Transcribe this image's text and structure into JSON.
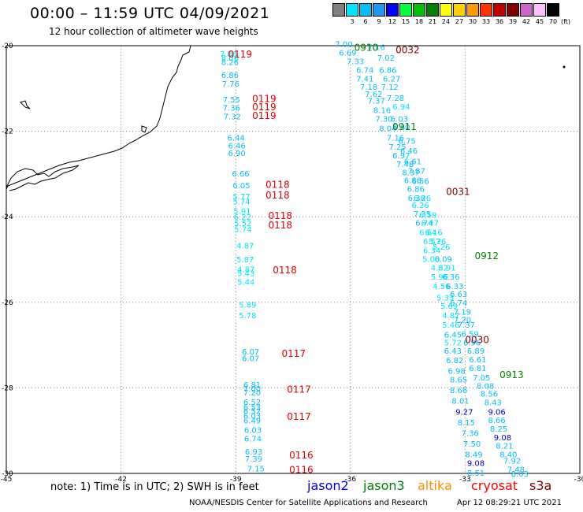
{
  "header": {
    "title": "00:00 – 11:59 UTC 04/09/2021",
    "subtitle": "12 hour collection of altimeter wave heights"
  },
  "legend": {
    "unit": "(ft)",
    "items": [
      {
        "label": "",
        "color": "#808080"
      },
      {
        "label": "3",
        "color": "#00e5ff"
      },
      {
        "label": "6",
        "color": "#00bfff"
      },
      {
        "label": "9",
        "color": "#2196f3"
      },
      {
        "label": "12",
        "color": "#0000ff"
      },
      {
        "label": "15",
        "color": "#00ff40"
      },
      {
        "label": "18",
        "color": "#00c000"
      },
      {
        "label": "21",
        "color": "#008000"
      },
      {
        "label": "24",
        "color": "#ffff00"
      },
      {
        "label": "27",
        "color": "#ffd000"
      },
      {
        "label": "30",
        "color": "#ff9900"
      },
      {
        "label": "33",
        "color": "#ff3300"
      },
      {
        "label": "36",
        "color": "#c00000"
      },
      {
        "label": "39",
        "color": "#800000"
      },
      {
        "label": "42",
        "color": "#cc66cc"
      },
      {
        "label": "45",
        "color": "#ffc0ff"
      },
      {
        "label": "70",
        "color": "#000000"
      }
    ]
  },
  "map": {
    "lon_ticks": [
      "-45",
      "-42",
      "-39",
      "-36",
      "-33",
      "-30"
    ],
    "lat_ticks": [
      "-20",
      "-22",
      "-24",
      "-26",
      "-28",
      "-30"
    ]
  },
  "tracks": {
    "west_values": [
      {
        "lon": -39.42,
        "lat": -20.18,
        "v": "7.86",
        "c": "#00e5ff"
      },
      {
        "lon": -39.38,
        "lat": -20.28,
        "v": "8.06",
        "c": "#00e5ff"
      },
      {
        "lon": -39.38,
        "lat": -20.38,
        "v": "8.26",
        "c": "#00bfff"
      },
      {
        "lon": -39.38,
        "lat": -20.68,
        "v": "6.86",
        "c": "#00bfff"
      },
      {
        "lon": -39.36,
        "lat": -20.88,
        "v": "7.76",
        "c": "#00bfff"
      },
      {
        "lon": -39.34,
        "lat": -21.25,
        "v": "7.55",
        "c": "#00bfff"
      },
      {
        "lon": -39.34,
        "lat": -21.45,
        "v": "7.36",
        "c": "#00bfff"
      },
      {
        "lon": -39.32,
        "lat": -21.65,
        "v": "7.32",
        "c": "#00bfff"
      },
      {
        "lon": -39.22,
        "lat": -22.15,
        "v": "6.44",
        "c": "#00bfff"
      },
      {
        "lon": -39.2,
        "lat": -22.33,
        "v": "6.46",
        "c": "#00bfff"
      },
      {
        "lon": -39.2,
        "lat": -22.5,
        "v": "6.90",
        "c": "#00bfff"
      },
      {
        "lon": -39.1,
        "lat": -22.98,
        "v": "6.66",
        "c": "#00bfff"
      },
      {
        "lon": -39.08,
        "lat": -23.26,
        "v": "6.05",
        "c": "#00bfff"
      },
      {
        "lon": -39.08,
        "lat": -23.52,
        "v": "5.77",
        "c": "#00e5ff"
      },
      {
        "lon": -39.08,
        "lat": -23.64,
        "v": "5.74",
        "c": "#00e5ff"
      },
      {
        "lon": -39.06,
        "lat": -23.86,
        "v": "5.91",
        "c": "#00e5ff"
      },
      {
        "lon": -39.05,
        "lat": -24.0,
        "v": "6.22",
        "c": "#00e5ff"
      },
      {
        "lon": -39.04,
        "lat": -24.14,
        "v": "5.52",
        "c": "#00e5ff"
      },
      {
        "lon": -39.04,
        "lat": -24.28,
        "v": "5.74",
        "c": "#00e5ff"
      },
      {
        "lon": -38.98,
        "lat": -24.67,
        "v": "4.87",
        "c": "#00e5ff"
      },
      {
        "lon": -38.98,
        "lat": -24.99,
        "v": "5.87",
        "c": "#00e5ff"
      },
      {
        "lon": -38.96,
        "lat": -25.22,
        "v": "4.87",
        "c": "#00e5ff"
      },
      {
        "lon": -38.96,
        "lat": -25.31,
        "v": "5.43",
        "c": "#00e5ff"
      },
      {
        "lon": -38.96,
        "lat": -25.52,
        "v": "5.44",
        "c": "#00e5ff"
      },
      {
        "lon": -38.92,
        "lat": -26.05,
        "v": "5.89",
        "c": "#00e5ff"
      },
      {
        "lon": -38.92,
        "lat": -26.3,
        "v": "5.78",
        "c": "#00e5ff"
      },
      {
        "lon": -38.84,
        "lat": -27.15,
        "v": "6.07",
        "c": "#00bfff"
      },
      {
        "lon": -38.84,
        "lat": -27.3,
        "v": "6.07",
        "c": "#00bfff"
      },
      {
        "lon": -38.8,
        "lat": -27.92,
        "v": "6.81",
        "c": "#00bfff"
      },
      {
        "lon": -38.8,
        "lat": -28.01,
        "v": "7.00",
        "c": "#00bfff"
      },
      {
        "lon": -38.8,
        "lat": -28.1,
        "v": "7.20",
        "c": "#00bfff"
      },
      {
        "lon": -38.8,
        "lat": -28.32,
        "v": "6.52",
        "c": "#00bfff"
      },
      {
        "lon": -38.8,
        "lat": -28.44,
        "v": "6.53",
        "c": "#00bfff"
      },
      {
        "lon": -38.8,
        "lat": -28.54,
        "v": "6.52",
        "c": "#00bfff"
      },
      {
        "lon": -38.8,
        "lat": -28.65,
        "v": "6.03",
        "c": "#00bfff"
      },
      {
        "lon": -38.8,
        "lat": -28.76,
        "v": "6.49",
        "c": "#00bfff"
      },
      {
        "lon": -38.78,
        "lat": -28.98,
        "v": "6.03",
        "c": "#00bfff"
      },
      {
        "lon": -38.78,
        "lat": -29.18,
        "v": "6.74",
        "c": "#00bfff"
      },
      {
        "lon": -38.76,
        "lat": -29.48,
        "v": "6.93",
        "c": "#00bfff"
      },
      {
        "lon": -38.76,
        "lat": -29.65,
        "v": "7.39",
        "c": "#00bfff"
      },
      {
        "lon": -38.7,
        "lat": -29.88,
        "v": "7.15",
        "c": "#00bfff"
      }
    ],
    "east_values": [
      {
        "lon": -36.4,
        "lat": -19.95,
        "v": "7.00",
        "c": "#00bfff"
      },
      {
        "lon": -35.55,
        "lat": -20.03,
        "v": "7.16",
        "c": "#00bfff"
      },
      {
        "lon": -36.3,
        "lat": -20.16,
        "v": "6.69",
        "c": "#00bfff"
      },
      {
        "lon": -35.3,
        "lat": -20.28,
        "v": "7.02",
        "c": "#00bfff"
      },
      {
        "lon": -36.1,
        "lat": -20.36,
        "v": "7.33",
        "c": "#00bfff"
      },
      {
        "lon": -35.85,
        "lat": -20.56,
        "v": "6.74",
        "c": "#00bfff"
      },
      {
        "lon": -35.25,
        "lat": -20.56,
        "v": "6.86",
        "c": "#00bfff"
      },
      {
        "lon": -35.85,
        "lat": -20.76,
        "v": "7.41",
        "c": "#00bfff"
      },
      {
        "lon": -35.15,
        "lat": -20.76,
        "v": "6.27",
        "c": "#00bfff"
      },
      {
        "lon": -35.75,
        "lat": -20.96,
        "v": "7.18",
        "c": "#00bfff"
      },
      {
        "lon": -35.2,
        "lat": -20.96,
        "v": "7.12",
        "c": "#00bfff"
      },
      {
        "lon": -35.62,
        "lat": -21.12,
        "v": "7.62",
        "c": "#00bfff"
      },
      {
        "lon": -35.05,
        "lat": -21.22,
        "v": "7.28",
        "c": "#00bfff"
      },
      {
        "lon": -35.55,
        "lat": -21.28,
        "v": "7.37",
        "c": "#00bfff"
      },
      {
        "lon": -34.9,
        "lat": -21.42,
        "v": "6.94",
        "c": "#00e5ff"
      },
      {
        "lon": -35.4,
        "lat": -21.5,
        "v": "8.16",
        "c": "#00bfff"
      },
      {
        "lon": -35.35,
        "lat": -21.7,
        "v": "7.30",
        "c": "#00bfff"
      },
      {
        "lon": -34.95,
        "lat": -21.7,
        "v": "6.03",
        "c": "#00bfff"
      },
      {
        "lon": -35.25,
        "lat": -21.92,
        "v": "8.04",
        "c": "#00bfff"
      },
      {
        "lon": -34.9,
        "lat": -21.9,
        "v": "6.80",
        "c": "#00bfff"
      },
      {
        "lon": -35.05,
        "lat": -22.15,
        "v": "7.16",
        "c": "#00bfff"
      },
      {
        "lon": -34.75,
        "lat": -22.22,
        "v": "6.75",
        "c": "#00bfff"
      },
      {
        "lon": -35.0,
        "lat": -22.36,
        "v": "7.25",
        "c": "#00bfff"
      },
      {
        "lon": -34.7,
        "lat": -22.45,
        "v": "6.46",
        "c": "#00bfff"
      },
      {
        "lon": -34.9,
        "lat": -22.56,
        "v": "6.97",
        "c": "#00bfff"
      },
      {
        "lon": -34.6,
        "lat": -22.7,
        "v": "6.61",
        "c": "#00bfff"
      },
      {
        "lon": -34.8,
        "lat": -22.76,
        "v": "7.48",
        "c": "#00bfff"
      },
      {
        "lon": -34.5,
        "lat": -22.92,
        "v": "7.87",
        "c": "#00bfff"
      },
      {
        "lon": -34.65,
        "lat": -22.96,
        "v": "8.37",
        "c": "#00bfff"
      },
      {
        "lon": -34.6,
        "lat": -23.14,
        "v": "6.86",
        "c": "#00bfff"
      },
      {
        "lon": -34.4,
        "lat": -23.16,
        "v": "6.56",
        "c": "#00bfff"
      },
      {
        "lon": -34.52,
        "lat": -23.34,
        "v": "6.86",
        "c": "#00bfff"
      },
      {
        "lon": -34.5,
        "lat": -23.55,
        "v": "6.38",
        "c": "#00bfff"
      },
      {
        "lon": -34.35,
        "lat": -23.55,
        "v": "6.26",
        "c": "#00e5ff"
      },
      {
        "lon": -34.4,
        "lat": -23.72,
        "v": "6.26",
        "c": "#00e5ff"
      },
      {
        "lon": -34.35,
        "lat": -23.92,
        "v": "7.35",
        "c": "#00bfff"
      },
      {
        "lon": -34.2,
        "lat": -23.95,
        "v": "6.59",
        "c": "#00e5ff"
      },
      {
        "lon": -34.3,
        "lat": -24.13,
        "v": "6.74",
        "c": "#00bfff"
      },
      {
        "lon": -34.15,
        "lat": -24.13,
        "v": "6.47",
        "c": "#00e5ff"
      },
      {
        "lon": -34.2,
        "lat": -24.36,
        "v": "6.64",
        "c": "#00e5ff"
      },
      {
        "lon": -34.05,
        "lat": -24.36,
        "v": "6.16",
        "c": "#00e5ff"
      },
      {
        "lon": -34.1,
        "lat": -24.57,
        "v": "6.57",
        "c": "#00e5ff"
      },
      {
        "lon": -33.95,
        "lat": -24.57,
        "v": "5.26",
        "c": "#00e5ff"
      },
      {
        "lon": -34.1,
        "lat": -24.78,
        "v": "6.34",
        "c": "#00e5ff"
      },
      {
        "lon": -33.85,
        "lat": -24.7,
        "v": "5.26",
        "c": "#00e5ff"
      },
      {
        "lon": -34.12,
        "lat": -24.98,
        "v": "5.00",
        "c": "#00e5ff"
      },
      {
        "lon": -33.8,
        "lat": -24.98,
        "v": "6.09",
        "c": "#00bfff"
      },
      {
        "lon": -33.9,
        "lat": -25.18,
        "v": "4.82",
        "c": "#00e5ff"
      },
      {
        "lon": -33.7,
        "lat": -25.18,
        "v": "5.91",
        "c": "#00e5ff"
      },
      {
        "lon": -33.9,
        "lat": -25.4,
        "v": "5.96",
        "c": "#00e5ff"
      },
      {
        "lon": -33.6,
        "lat": -25.4,
        "v": "6.36",
        "c": "#00bfff"
      },
      {
        "lon": -33.85,
        "lat": -25.62,
        "v": "4.56",
        "c": "#00e5ff"
      },
      {
        "lon": -33.5,
        "lat": -25.62,
        "v": "6.33",
        "c": "#00bfff"
      },
      {
        "lon": -33.4,
        "lat": -25.8,
        "v": "6.63",
        "c": "#00bfff"
      },
      {
        "lon": -33.75,
        "lat": -25.88,
        "v": "5.33",
        "c": "#00e5ff"
      },
      {
        "lon": -33.4,
        "lat": -26.0,
        "v": "6.74",
        "c": "#00bfff"
      },
      {
        "lon": -33.65,
        "lat": -26.08,
        "v": "5.69",
        "c": "#00e5ff"
      },
      {
        "lon": -33.3,
        "lat": -26.22,
        "v": "7.19",
        "c": "#00bfff"
      },
      {
        "lon": -33.6,
        "lat": -26.3,
        "v": "4.87",
        "c": "#00e5ff"
      },
      {
        "lon": -33.3,
        "lat": -26.4,
        "v": "7.20",
        "c": "#00bfff"
      },
      {
        "lon": -33.6,
        "lat": -26.52,
        "v": "5.46",
        "c": "#00e5ff"
      },
      {
        "lon": -33.2,
        "lat": -26.52,
        "v": "7.37",
        "c": "#00bfff"
      },
      {
        "lon": -33.55,
        "lat": -26.75,
        "v": "6.45",
        "c": "#00bfff"
      },
      {
        "lon": -33.1,
        "lat": -26.73,
        "v": "6.59",
        "c": "#00bfff"
      },
      {
        "lon": -33.55,
        "lat": -26.93,
        "v": "5.72",
        "c": "#00e5ff"
      },
      {
        "lon": -33.05,
        "lat": -26.93,
        "v": "6.96",
        "c": "#00bfff"
      },
      {
        "lon": -33.55,
        "lat": -27.13,
        "v": "6.43",
        "c": "#00bfff"
      },
      {
        "lon": -32.95,
        "lat": -27.13,
        "v": "6.89",
        "c": "#00bfff"
      },
      {
        "lon": -33.5,
        "lat": -27.35,
        "v": "6.82",
        "c": "#00bfff"
      },
      {
        "lon": -32.9,
        "lat": -27.33,
        "v": "6.61",
        "c": "#00bfff"
      },
      {
        "lon": -33.45,
        "lat": -27.6,
        "v": "6.98",
        "c": "#00bfff"
      },
      {
        "lon": -32.9,
        "lat": -27.53,
        "v": "6.81",
        "c": "#00bfff"
      },
      {
        "lon": -32.8,
        "lat": -27.75,
        "v": "7.05",
        "c": "#00bfff"
      },
      {
        "lon": -33.4,
        "lat": -27.8,
        "v": "8.65",
        "c": "#00bfff"
      },
      {
        "lon": -32.7,
        "lat": -27.95,
        "v": "8.08",
        "c": "#00bfff"
      },
      {
        "lon": -33.4,
        "lat": -28.05,
        "v": "8.66",
        "c": "#00bfff"
      },
      {
        "lon": -32.6,
        "lat": -28.13,
        "v": "8.56",
        "c": "#00bfff"
      },
      {
        "lon": -32.5,
        "lat": -28.33,
        "v": "8.43",
        "c": "#00bfff"
      },
      {
        "lon": -33.35,
        "lat": -28.3,
        "v": "8.01",
        "c": "#00bfff"
      },
      {
        "lon": -32.4,
        "lat": -28.55,
        "v": "9.06",
        "c": "#0000cc"
      },
      {
        "lon": -33.25,
        "lat": -28.55,
        "v": "9.27",
        "c": "#0000cc"
      },
      {
        "lon": -32.4,
        "lat": -28.75,
        "v": "8.66",
        "c": "#00bfff"
      },
      {
        "lon": -33.2,
        "lat": -28.8,
        "v": "8.15",
        "c": "#00bfff"
      },
      {
        "lon": -32.35,
        "lat": -28.95,
        "v": "8.25",
        "c": "#00bfff"
      },
      {
        "lon": -33.1,
        "lat": -29.05,
        "v": "7.36",
        "c": "#00bfff"
      },
      {
        "lon": -32.25,
        "lat": -29.15,
        "v": "9.08",
        "c": "#0000cc"
      },
      {
        "lon": -33.05,
        "lat": -29.3,
        "v": "7.50",
        "c": "#00bfff"
      },
      {
        "lon": -32.2,
        "lat": -29.35,
        "v": "8.21",
        "c": "#00bfff"
      },
      {
        "lon": -32.1,
        "lat": -29.55,
        "v": "8.40",
        "c": "#00bfff"
      },
      {
        "lon": -33.0,
        "lat": -29.55,
        "v": "8.49",
        "c": "#00bfff"
      },
      {
        "lon": -32.0,
        "lat": -29.7,
        "v": "7.92",
        "c": "#00bfff"
      },
      {
        "lon": -32.95,
        "lat": -29.75,
        "v": "9.08",
        "c": "#0000cc"
      },
      {
        "lon": -31.9,
        "lat": -29.9,
        "v": "7.48",
        "c": "#00bfff"
      },
      {
        "lon": -32.95,
        "lat": -29.98,
        "v": "8.51",
        "c": "#00bfff"
      },
      {
        "lon": -31.8,
        "lat": -30.0,
        "v": "8.03",
        "c": "#00bfff"
      }
    ],
    "pass_labels": [
      {
        "lon": -39.2,
        "lat": -20.2,
        "t": "0119",
        "c": "#e00000"
      },
      {
        "lon": -38.57,
        "lat": -21.24,
        "t": "0119",
        "c": "#e00000"
      },
      {
        "lon": -38.57,
        "lat": -21.44,
        "t": "0119",
        "c": "#e00000"
      },
      {
        "lon": -38.57,
        "lat": -21.64,
        "t": "0119",
        "c": "#e00000"
      },
      {
        "lon": -38.22,
        "lat": -23.25,
        "t": "0118",
        "c": "#e00000"
      },
      {
        "lon": -38.22,
        "lat": -23.5,
        "t": "0118",
        "c": "#e00000"
      },
      {
        "lon": -38.15,
        "lat": -23.98,
        "t": "0118",
        "c": "#e00000"
      },
      {
        "lon": -38.15,
        "lat": -24.2,
        "t": "0118",
        "c": "#e00000"
      },
      {
        "lon": -38.03,
        "lat": -25.25,
        "t": "0118",
        "c": "#e00000"
      },
      {
        "lon": -37.8,
        "lat": -27.2,
        "t": "0117",
        "c": "#e00000"
      },
      {
        "lon": -37.66,
        "lat": -28.04,
        "t": "0117",
        "c": "#e00000"
      },
      {
        "lon": -37.66,
        "lat": -28.67,
        "t": "0117",
        "c": "#e00000"
      },
      {
        "lon": -37.6,
        "lat": -29.58,
        "t": "0116",
        "c": "#e00000"
      },
      {
        "lon": -37.6,
        "lat": -29.92,
        "t": "0116",
        "c": "#e00000"
      },
      {
        "lon": -35.9,
        "lat": -20.05,
        "t": "0910",
        "c": "#008000"
      },
      {
        "lon": -34.82,
        "lat": -20.1,
        "t": "0032",
        "c": "#800000"
      },
      {
        "lon": -34.9,
        "lat": -21.9,
        "t": "0911",
        "c": "#008000"
      },
      {
        "lon": -33.5,
        "lat": -23.42,
        "t": "0031",
        "c": "#800000"
      },
      {
        "lon": -32.75,
        "lat": -24.92,
        "t": "0912",
        "c": "#008000"
      },
      {
        "lon": -33.0,
        "lat": -26.88,
        "t": "0030",
        "c": "#800000"
      },
      {
        "lon": -32.1,
        "lat": -27.7,
        "t": "0913",
        "c": "#008000"
      }
    ]
  },
  "footer": {
    "note": "note:  1) Time is in UTC;  2) SWH is in feet",
    "missions": [
      {
        "label": "jason2",
        "color": "#0000ee",
        "x": 390
      },
      {
        "label": "jason3",
        "color": "#008000",
        "x": 461
      },
      {
        "label": "altika",
        "color": "#ff8c00",
        "x": 530
      },
      {
        "label": "cryosat",
        "color": "#ff0000",
        "x": 598
      },
      {
        "label": "s3a",
        "color": "#800000",
        "x": 672
      }
    ],
    "credit": "NOAA/NESDIS Center for Satellite Applications and Research",
    "timestamp": "Apr 12 08:29:21 UTC 2021"
  }
}
